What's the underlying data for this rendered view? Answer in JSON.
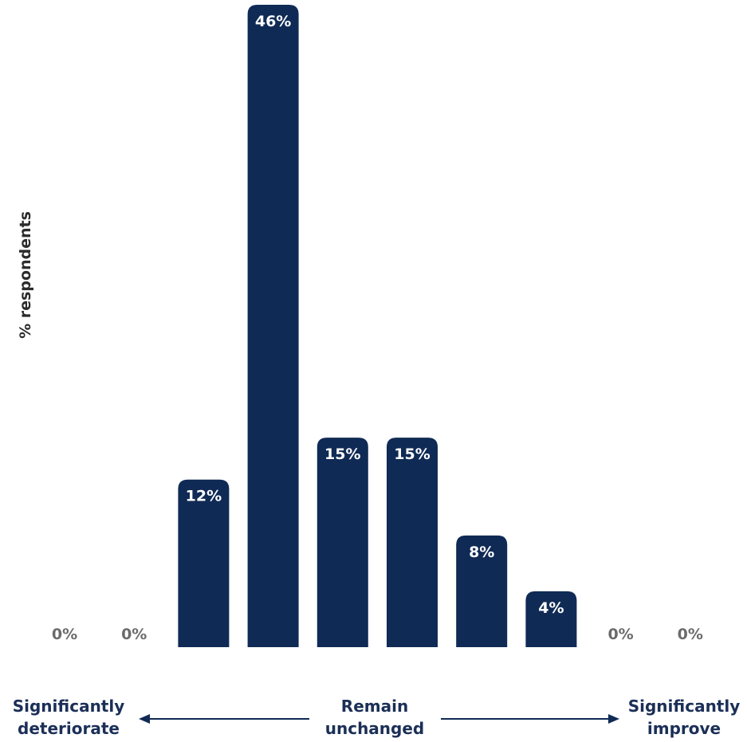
{
  "chart_data": {
    "type": "bar",
    "categories": [
      "",
      "",
      "",
      "",
      "",
      "",
      "",
      "",
      "",
      ""
    ],
    "values": [
      0,
      0,
      12,
      46,
      15,
      15,
      8,
      4,
      0,
      0
    ],
    "value_labels": [
      "0%",
      "0%",
      "12%",
      "46%",
      "15%",
      "15%",
      "8%",
      "4%",
      "0%",
      "0%"
    ],
    "ylabel": "% respondents",
    "ylim": [
      0,
      46
    ],
    "grid": false,
    "bar_color": "#0f2a55",
    "zero_label_color": "#6b6b6b",
    "scale_labels": {
      "left": [
        "Significantly",
        "deteriorate"
      ],
      "middle": [
        "Remain",
        "unchanged"
      ],
      "right": [
        "Significantly",
        "improve"
      ]
    },
    "arrow_color": "#0f2a55"
  }
}
